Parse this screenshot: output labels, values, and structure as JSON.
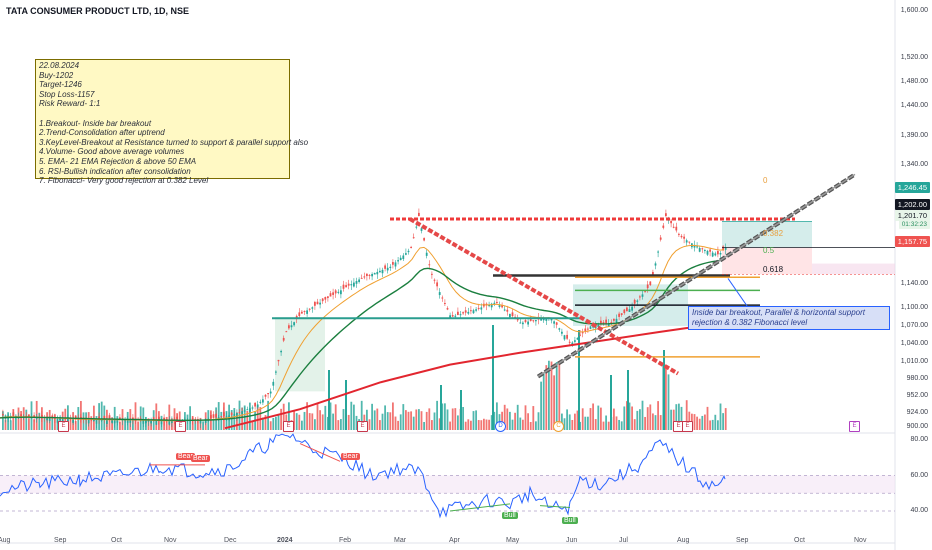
{
  "header": {
    "title": "TATA CONSUMER PRODUCT LTD, 1D, NSE"
  },
  "annotation": {
    "lines": [
      "22.08.2024",
      "Buy-1202",
      "Target-1246",
      "Stop Loss-1157",
      "Risk Reward- 1:1",
      "",
      "1.Breakout- Inside bar breakout",
      "2.Trend-Consolidation after uptrend",
      "3.KeyLevel-Breakout at Resistance turned to support & parallel support also",
      "4.Volume- Good above average volumes",
      "5. EMA- 21 EMA Rejection & above 50 EMA",
      "6. RSI-Bullish indication after consolidation",
      "7. Fibonacci- Very good rejection at 0.382 Level"
    ],
    "note": "Inside bar breakout, Parallel & horizontal support rejection & 0.382 Fibonacci level"
  },
  "price_labels": {
    "target": "1,246.45",
    "entry": "1,202.00",
    "current": "1,201.70",
    "countdown": "01:32:23",
    "stop": "1,157.75"
  },
  "fib_labels": {
    "f0": "0",
    "f382": "0.382",
    "f5": "0.5",
    "f618": "0.618"
  },
  "pins": {
    "bear1": "Bear",
    "bear2": "Bear",
    "bear3": "Bear",
    "bull1": "Bull",
    "bull2": "Bull"
  },
  "events": [
    "E",
    "E",
    "E",
    "E",
    "D",
    "C",
    "E",
    "E"
  ],
  "colors": {
    "candle_up": "#26a69a",
    "candle_down": "#ef5350",
    "ema21": "#f0a030",
    "ema50": "#1b7f3f",
    "ema200": "#e2262f",
    "rsi": "#2962ff",
    "resistance": "#ef3a3a",
    "trendline": "#333333"
  },
  "chart_data": {
    "type": "line",
    "title": "TATA CONSUMER PRODUCT LTD, 1D, NSE",
    "x_ticks": [
      "Aug",
      "Sep",
      "Oct",
      "Nov",
      "Dec",
      "2024",
      "Feb",
      "Mar",
      "Apr",
      "May",
      "Jun",
      "Jul",
      "Aug",
      "Sep",
      "Oct",
      "Nov"
    ],
    "y_ticks": [
      "1,600.00",
      "1,520.00",
      "1,480.00",
      "1,440.00",
      "1,390.00",
      "1,340.00",
      "1,300.00",
      "1,140.00",
      "1,100.00",
      "1,070.00",
      "1,040.00",
      "1,010.00",
      "980.00",
      "952.00",
      "924.00",
      "900.00"
    ],
    "rsi_ticks": [
      "80.00",
      "60.00",
      "40.00"
    ],
    "ylim": [
      895,
      1610
    ],
    "series": [
      {
        "name": "Close",
        "x": [
          "Aug",
          "Sep",
          "Oct",
          "Nov",
          "Dec",
          "2024",
          "Feb",
          "Mar",
          "Apr",
          "May",
          "Jun",
          "Jul",
          "Aug"
        ],
        "values": [
          880,
          890,
          905,
          915,
          940,
          1080,
          1150,
          1240,
          1100,
          1080,
          1060,
          1140,
          1202
        ]
      },
      {
        "name": "RSI",
        "x": [
          "Aug",
          "Sep",
          "Oct",
          "Nov",
          "Dec",
          "2024",
          "Feb",
          "Mar",
          "Apr",
          "May",
          "Jun",
          "Jul",
          "Aug"
        ],
        "values": [
          52,
          55,
          58,
          64,
          62,
          80,
          70,
          66,
          40,
          44,
          42,
          70,
          56
        ]
      }
    ]
  }
}
